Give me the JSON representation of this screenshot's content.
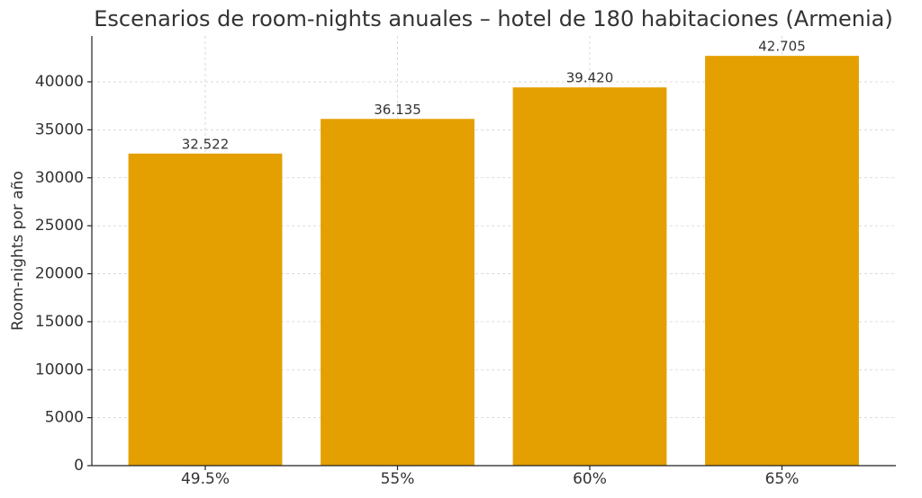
{
  "chart_data": {
    "type": "bar",
    "title": "Escenarios de room-nights anuales – hotel de 180 habitaciones (Armenia)",
    "y_label": "Room-nights por año",
    "categories": [
      "49.5%",
      "55%",
      "60%",
      "65%"
    ],
    "values": [
      32522,
      36135,
      39420,
      42705
    ],
    "value_labels": [
      "32.522",
      "36.135",
      "39.420",
      "42.705"
    ],
    "color": "#e49f00",
    "ylim": [
      0,
      44780
    ],
    "yticks": [
      0,
      5000,
      10000,
      15000,
      20000,
      25000,
      30000,
      35000,
      40000
    ],
    "grid": true
  }
}
